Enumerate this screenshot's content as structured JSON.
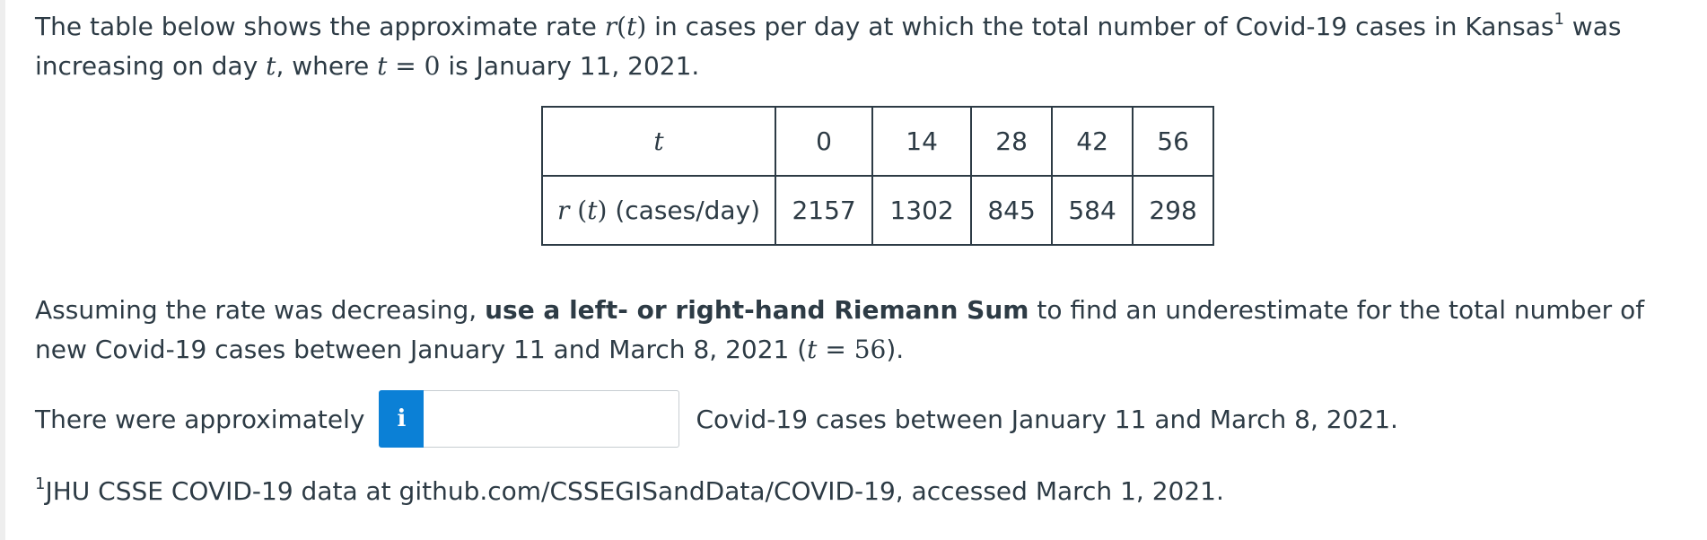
{
  "intro": {
    "part1": "The table below shows the approximate rate ",
    "func": "r",
    "arg": "(t)",
    "part2": " in cases per day at which the total number of Covid-19 cases in Kansas",
    "footnote_mark": "1",
    "part3": " was increasing on day ",
    "var_t": "t",
    "part4": ", where ",
    "eq_t": "t",
    "eq_sign": " = ",
    "eq_zero": "0",
    "part5": " is January 11, 2021."
  },
  "table": {
    "row1_label": "t",
    "t_values": [
      "0",
      "14",
      "28",
      "42",
      "56"
    ],
    "row2_func": "r",
    "row2_arg": "(t)",
    "row2_unit": " (cases/day)",
    "r_values": [
      "2157",
      "1302",
      "845",
      "584",
      "298"
    ]
  },
  "question": {
    "part1": "Assuming the rate was decreasing, ",
    "bold": "use a left- or right-hand Riemann Sum",
    "part2": " to find an underestimate for the total number of new Covid-19 cases between January 11 and March 8, 2021 (",
    "var_t": "t",
    "eq": " = ",
    "val": "56",
    "part3": ")."
  },
  "answer": {
    "before": "There were approximately",
    "info_icon": "i",
    "input_value": "",
    "after": "Covid-19 cases between January 11 and March 8, 2021."
  },
  "footnote": {
    "mark": "1",
    "text": "JHU CSSE COVID-19 data at github.com/CSSEGISandData/COVID-19, accessed March 1, 2021."
  },
  "colors": {
    "text": "#2d3b45",
    "info_button": "#0b80d6",
    "border": "#2d3b45"
  }
}
